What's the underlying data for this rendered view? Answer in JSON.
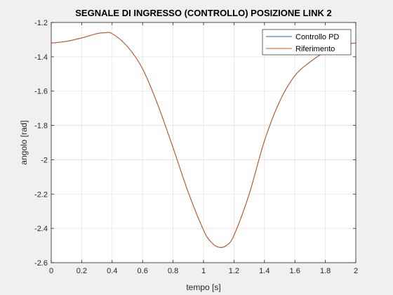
{
  "chart_data": {
    "type": "line",
    "title": "SEGNALE DI INGRESSO (CONTROLLO) POSIZIONE LINK 2",
    "xlabel": "tempo [s]",
    "ylabel": "angolo [rad]",
    "xlim": [
      0,
      2
    ],
    "ylim": [
      -2.6,
      -1.2
    ],
    "xticks": [
      0,
      0.2,
      0.4,
      0.6,
      0.8,
      1,
      1.2,
      1.4,
      1.6,
      1.8,
      2
    ],
    "xtick_labels": [
      "0",
      "0.2",
      "0.4",
      "0.6",
      "0.8",
      "1",
      "1.2",
      "1.4",
      "1.6",
      "1.8",
      "2"
    ],
    "yticks": [
      -2.6,
      -2.4,
      -2.2,
      -2,
      -1.8,
      -1.6,
      -1.4,
      -1.2
    ],
    "ytick_labels": [
      "-2.6",
      "-2.4",
      "-2.2",
      "-2",
      "-1.8",
      "-1.6",
      "-1.4",
      "-1.2"
    ],
    "grid": true,
    "legend_position": "top-right",
    "x": [
      0,
      0.1,
      0.2,
      0.3,
      0.35,
      0.4,
      0.5,
      0.6,
      0.7,
      0.8,
      0.9,
      1.0,
      1.05,
      1.1,
      1.15,
      1.2,
      1.3,
      1.4,
      1.5,
      1.6,
      1.7,
      1.8,
      1.9,
      2.0
    ],
    "series": [
      {
        "name": "Controllo PD",
        "color": "#0072BD",
        "values": [
          -1.32,
          -1.31,
          -1.29,
          -1.265,
          -1.26,
          -1.265,
          -1.34,
          -1.47,
          -1.68,
          -1.93,
          -2.19,
          -2.41,
          -2.48,
          -2.51,
          -2.5,
          -2.44,
          -2.2,
          -1.89,
          -1.66,
          -1.51,
          -1.43,
          -1.37,
          -1.33,
          -1.32
        ]
      },
      {
        "name": "Riferimento",
        "color": "#D95319",
        "values": [
          -1.32,
          -1.31,
          -1.29,
          -1.265,
          -1.26,
          -1.265,
          -1.34,
          -1.47,
          -1.68,
          -1.93,
          -2.19,
          -2.41,
          -2.48,
          -2.51,
          -2.5,
          -2.44,
          -2.2,
          -1.89,
          -1.66,
          -1.51,
          -1.43,
          -1.37,
          -1.33,
          -1.32
        ]
      }
    ]
  }
}
